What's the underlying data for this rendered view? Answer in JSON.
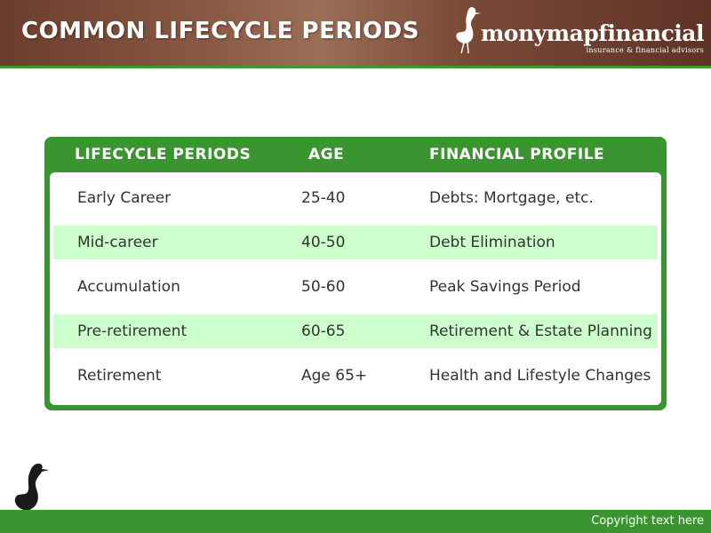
{
  "header": {
    "title": "COMMON LIFECYCLE PERIODS",
    "brand_name": "monymapfinancial",
    "brand_tagline": "insurance & financial advisors",
    "brand_icon": "heron-icon"
  },
  "table": {
    "columns": [
      "LIFECYCLE PERIODS",
      "AGE",
      "FINANCIAL PROFILE"
    ],
    "rows": [
      [
        "Early Career",
        "25-40",
        "Debts: Mortgage, etc."
      ],
      [
        "Mid-career",
        "40-50",
        "Debt Elimination"
      ],
      [
        "Accumulation",
        "50-60",
        "Peak Savings Period"
      ],
      [
        "Pre-retirement",
        "60-65",
        "Retirement & Estate Planning"
      ],
      [
        "Retirement",
        "Age 65+",
        "Health and Lifestyle Changes"
      ]
    ]
  },
  "footer": {
    "copyright": "Copyright text here"
  },
  "colors": {
    "header_brown": "#7a4a37",
    "accent_green": "#3a9530",
    "row_highlight": "#ccffcc",
    "text": "#333333"
  }
}
